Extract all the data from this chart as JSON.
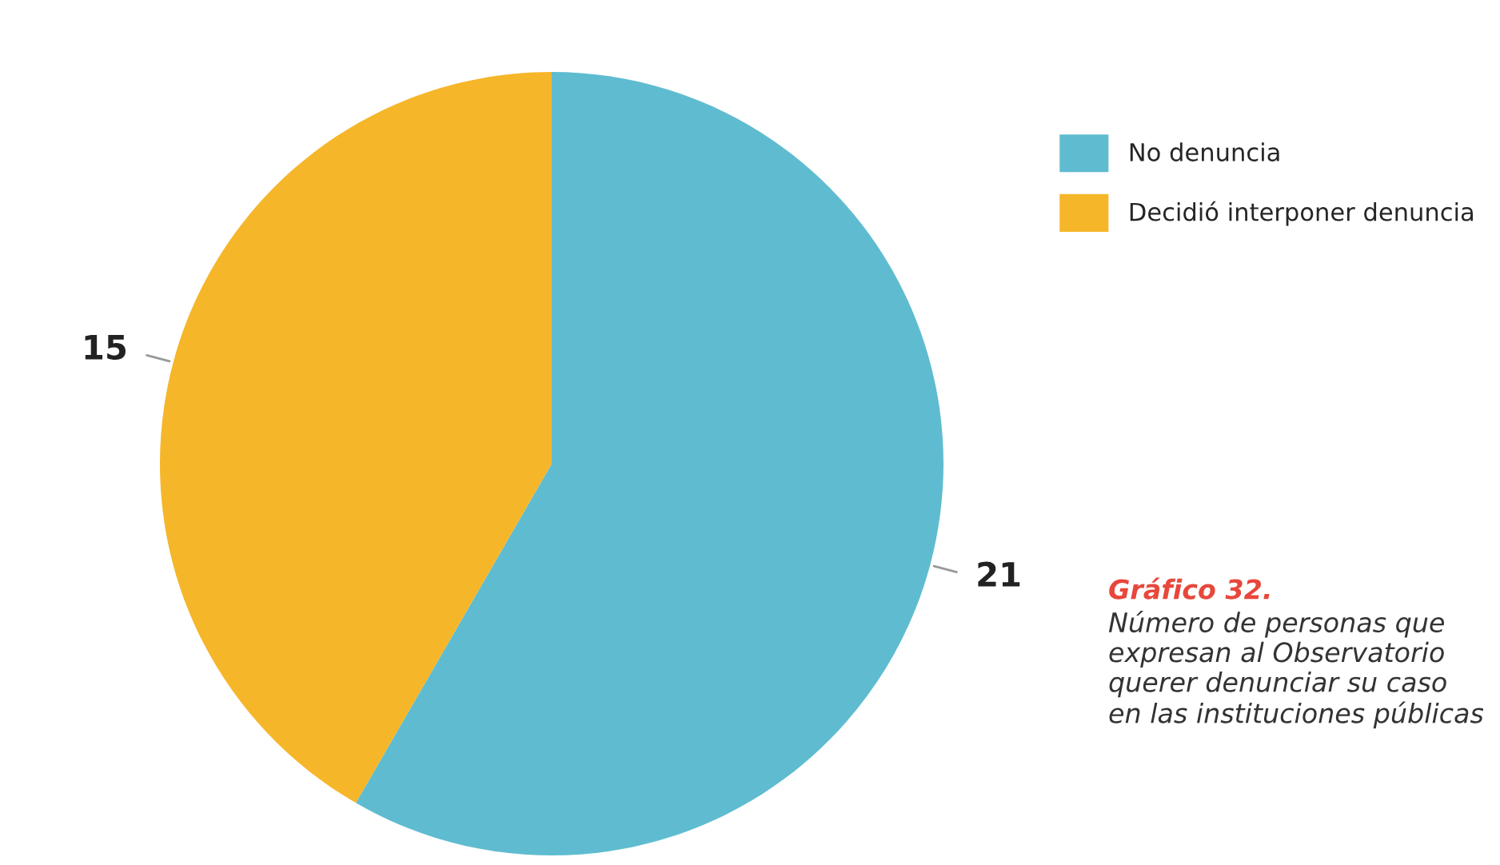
{
  "chart_data": {
    "type": "pie",
    "title": "Gráfico 32.",
    "annotations": [
      "Número de personas que expresan al Observatorio querer denunciar su caso en las instituciones públicas"
    ],
    "categories": [
      "No denuncia",
      "Decidió interponer denuncia"
    ],
    "values": [
      21,
      15
    ],
    "colors": [
      "#5fbcd0",
      "#f5b629"
    ],
    "data_labels": true,
    "legend": "top right"
  }
}
